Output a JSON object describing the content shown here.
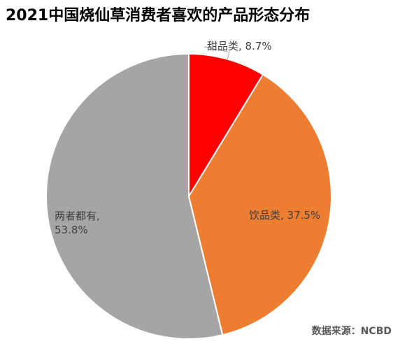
{
  "chart_data": {
    "type": "pie",
    "title": "2021中国烧仙草消费者喜欢的产品形态分布",
    "start_angle": "top",
    "direction": "clockwise",
    "slices": [
      {
        "label": "甜品类",
        "value": 8.7,
        "value_text": "8.7%",
        "color": "#FF0000",
        "label_text": [
          "甜品类, 8.7%"
        ]
      },
      {
        "label": "饮品类",
        "value": 37.5,
        "value_text": "37.5%",
        "color": "#ED7D31",
        "label_text": [
          "饮品类, 37.5%"
        ]
      },
      {
        "label": "两者都有",
        "value": 53.8,
        "value_text": "53.8%",
        "color": "#A5A5A5",
        "label_text": [
          "两者都有,",
          "53.8%"
        ]
      }
    ],
    "source": "数据来源：NCBD"
  }
}
